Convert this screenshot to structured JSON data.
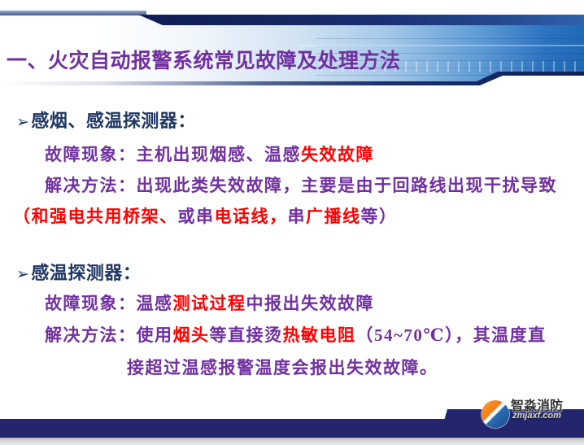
{
  "theme": {
    "title_color": "#7030A0",
    "body_purple": "#7030A0",
    "highlight_red": "#FF0000",
    "heading_navy": "#1F3864",
    "footer_bar_color": "#23256E"
  },
  "header": {
    "title": "一、火灾自动报警系统常见故障及处理方法"
  },
  "content": {
    "section1": {
      "bullet": "➢",
      "heading": "感烟、感温探测器：",
      "line_phenomenon": [
        {
          "text": "故障现象：主机出现烟感、温感",
          "color": "purple"
        },
        {
          "text": "失效故障",
          "color": "red"
        }
      ],
      "line_solution": [
        {
          "text": "解决方法：出现此类失效故障，主要是由于回路线出现干扰导致",
          "color": "purple"
        }
      ],
      "line_note": [
        {
          "text": "（和强电共用桥架、",
          "color": "red"
        },
        {
          "text": "或串",
          "color": "purple"
        },
        {
          "text": "电话线，",
          "color": "red"
        },
        {
          "text": "串",
          "color": "purple"
        },
        {
          "text": "广播线",
          "color": "red"
        },
        {
          "text": "等）",
          "color": "purple"
        }
      ]
    },
    "section2": {
      "bullet": "➢",
      "heading": "感温探测器：",
      "line_phenomenon": [
        {
          "text": "故障现象：温感",
          "color": "purple"
        },
        {
          "text": "测试过程",
          "color": "red"
        },
        {
          "text": "中报出失效故障",
          "color": "purple"
        }
      ],
      "line_solution": [
        {
          "text": "解决方法：使用",
          "color": "purple"
        },
        {
          "text": "烟头",
          "color": "red"
        },
        {
          "text": "等直接烫",
          "color": "purple"
        },
        {
          "text": "热敏电阻",
          "color": "red"
        },
        {
          "text": "（54~70℃），其温度直",
          "color": "purple"
        }
      ],
      "line_solution2": [
        {
          "text": "接超过温感报警温度会报出失效故障。",
          "color": "purple"
        }
      ]
    }
  },
  "footer": {
    "logo_name": "智淼消防",
    "logo_url": "zmjaxf.com"
  }
}
